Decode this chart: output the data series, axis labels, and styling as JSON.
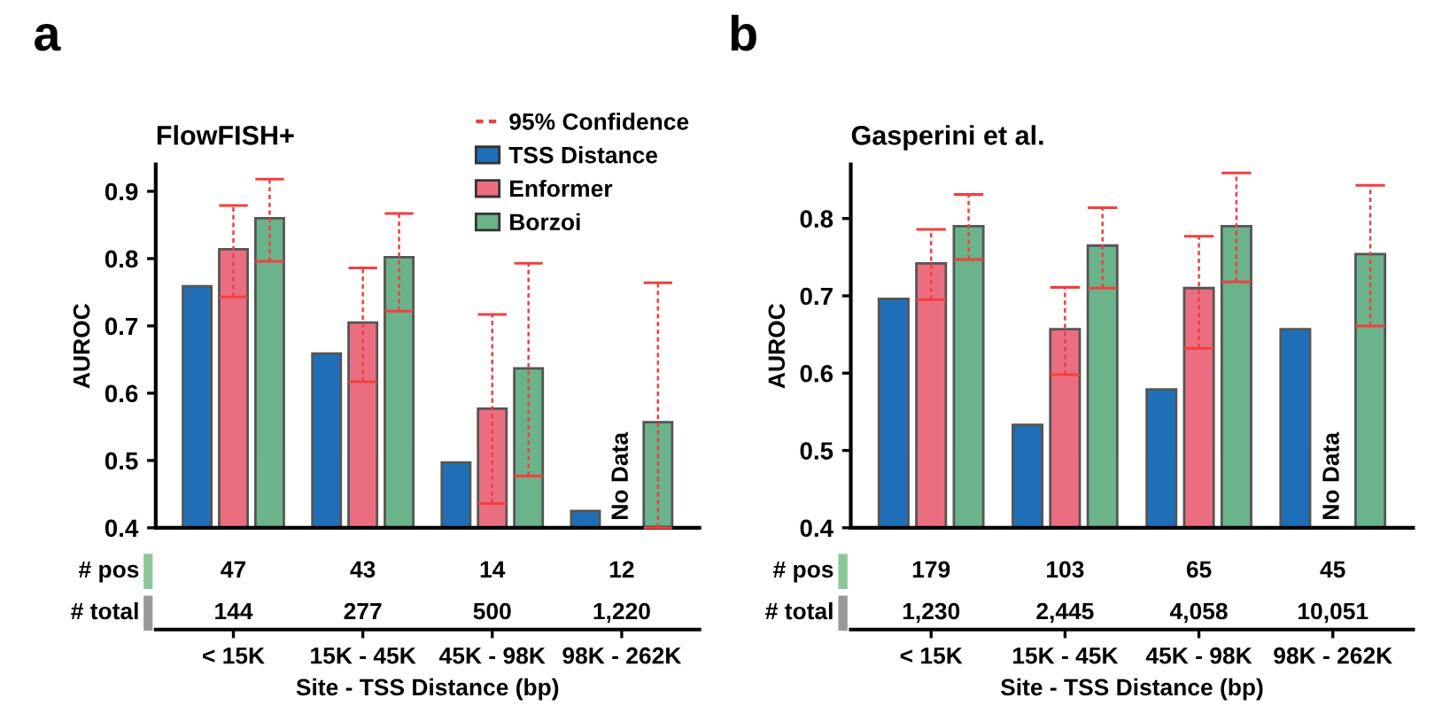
{
  "chart_data": [
    {
      "type": "bar",
      "title": "FlowFISH+",
      "ylabel": "AUROC",
      "xlabel": "Site - TSS Distance (bp)",
      "categories": [
        "< 15K",
        "15K - 45K",
        "45K - 98K",
        "98K - 262K"
      ],
      "ylim": [
        0.4,
        0.94
      ],
      "yticks": [
        0.4,
        0.5,
        0.6,
        0.7,
        0.8,
        0.9
      ],
      "grid": false,
      "legend": "top right",
      "series": [
        {
          "name": "TSS Distance",
          "color": "#1f6fb8",
          "values": [
            0.759,
            0.659,
            0.497,
            0.425
          ]
        },
        {
          "name": "Enformer",
          "color": "#eb6e80",
          "values": [
            0.814,
            0.705,
            0.577,
            null
          ],
          "errors": [
            [
              0.743,
              0.879
            ],
            [
              0.617,
              0.786
            ],
            [
              0.436,
              0.717
            ],
            null
          ]
        },
        {
          "name": "Borzoi",
          "color": "#6bb38a",
          "values": [
            0.86,
            0.802,
            0.637,
            0.557
          ],
          "errors": [
            [
              0.796,
              0.918
            ],
            [
              0.722,
              0.867
            ],
            [
              0.477,
              0.793
            ],
            [
              0.4,
              0.764
            ]
          ]
        }
      ],
      "annotations": [
        "a",
        "No Data",
        "# pos",
        "47",
        "43",
        "14",
        "12",
        "# total",
        "144",
        "277",
        "500",
        "1,220",
        "95% Confidence"
      ]
    },
    {
      "type": "bar",
      "title": "Gasperini et al.",
      "ylabel": "AUROC",
      "xlabel": "Site - TSS Distance (bp)",
      "categories": [
        "< 15K",
        "15K - 45K",
        "45K - 98K",
        "98K - 262K"
      ],
      "ylim": [
        0.4,
        0.87
      ],
      "yticks": [
        0.4,
        0.5,
        0.6,
        0.7,
        0.8
      ],
      "grid": false,
      "series": [
        {
          "color": "#1f6fb8",
          "values": [
            0.696,
            0.533,
            0.579,
            0.657
          ]
        },
        {
          "color": "#eb6e80",
          "values": [
            0.742,
            0.657,
            0.71,
            null
          ],
          "errors": [
            [
              0.695,
              0.786
            ],
            [
              0.598,
              0.711
            ],
            [
              0.632,
              0.777
            ],
            null
          ]
        },
        {
          "color": "#6bb38a",
          "values": [
            0.79,
            0.765,
            0.79,
            0.754
          ],
          "errors": [
            [
              0.747,
              0.831
            ],
            [
              0.71,
              0.814
            ],
            [
              0.718,
              0.859
            ],
            [
              0.661,
              0.843
            ]
          ]
        }
      ],
      "annotations": [
        "b",
        "No Data",
        "# pos",
        "179",
        "103",
        "65",
        "45",
        "# total",
        "1,230",
        "2,445",
        "4,058",
        "10,051"
      ]
    }
  ]
}
